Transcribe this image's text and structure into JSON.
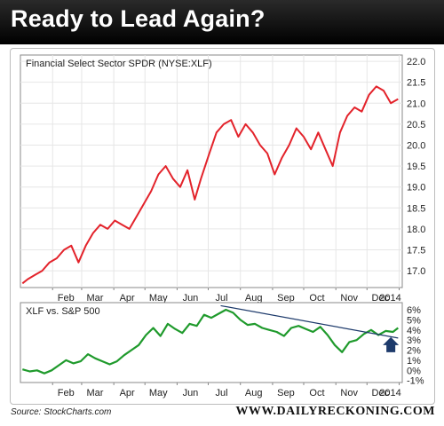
{
  "header": {
    "title": "Ready to Lead Again?"
  },
  "footer": {
    "source": "Source: StockCharts.com",
    "brand": "WWW.DAILYRECKONING.COM"
  },
  "colors": {
    "price_line": "#e3232b",
    "ratio_line": "#1f9a2c",
    "trend_line": "#1d3a6b",
    "arrow": "#1d3a6b"
  },
  "chart_data": [
    {
      "type": "line",
      "title": "Financial Select Sector SPDR (NYSE:XLF)",
      "x_ticks": [
        "Feb",
        "Mar",
        "Apr",
        "May",
        "Jun",
        "Jul",
        "Aug",
        "Sep",
        "Oct",
        "Nov",
        "Dec",
        "2014"
      ],
      "y_ticks": [
        "22.0",
        "21.5",
        "21.0",
        "20.5",
        "20.0",
        "19.5",
        "19.0",
        "18.5",
        "18.0",
        "17.5",
        "17.0"
      ],
      "ylim": [
        16.6,
        22.15
      ],
      "grid": true,
      "series": [
        {
          "x": [
            "Jan 3",
            "Jan 8",
            "Jan 15",
            "Jan 22",
            "Jan 29",
            "Feb 5",
            "Feb 12",
            "Feb 19",
            "Feb 26",
            "Mar 5",
            "Mar 12",
            "Mar 19",
            "Mar 26",
            "Apr 2",
            "Apr 9",
            "Apr 16",
            "Apr 23",
            "Apr 30",
            "May 7",
            "May 14",
            "May 21",
            "May 28",
            "Jun 4",
            "Jun 11",
            "Jun 18",
            "Jun 24",
            "Jul 2",
            "Jul 9",
            "Jul 16",
            "Jul 23",
            "Jul 30",
            "Aug 6",
            "Aug 13",
            "Aug 20",
            "Aug 27",
            "Sep 3",
            "Sep 10",
            "Sep 17",
            "Sep 24",
            "Oct 1",
            "Oct 8",
            "Oct 15",
            "Oct 22",
            "Oct 29",
            "Nov 5",
            "Nov 12",
            "Nov 19",
            "Nov 26",
            "Dec 3",
            "Dec 10",
            "Dec 17",
            "Dec 24",
            "Dec 31"
          ],
          "values": [
            16.7,
            16.8,
            16.9,
            17.0,
            17.2,
            17.3,
            17.5,
            17.6,
            17.2,
            17.6,
            17.9,
            18.1,
            18.0,
            18.2,
            18.1,
            18.0,
            18.3,
            18.6,
            18.9,
            19.3,
            19.5,
            19.2,
            19.0,
            19.4,
            18.7,
            19.2,
            19.8,
            20.3,
            20.5,
            20.6,
            20.2,
            20.5,
            20.3,
            20.0,
            19.8,
            19.3,
            19.7,
            20.0,
            20.4,
            20.2,
            19.9,
            20.3,
            19.9,
            19.5,
            20.3,
            20.7,
            20.9,
            20.8,
            21.2,
            21.4,
            21.3,
            21.0,
            21.1
          ]
        }
      ]
    },
    {
      "type": "line",
      "title": "XLF vs. S&P 500",
      "x_ticks": [
        "Feb",
        "Mar",
        "Apr",
        "May",
        "Jun",
        "Jul",
        "Aug",
        "Sep",
        "Oct",
        "Nov",
        "Dec",
        "2014"
      ],
      "y_ticks": [
        "6%",
        "5%",
        "4%",
        "3%",
        "2%",
        "1%",
        "0%",
        "-1%"
      ],
      "ylim": [
        -1.2,
        6.7
      ],
      "series": [
        {
          "x": [
            "Jan 3",
            "Jan 10",
            "Jan 17",
            "Jan 24",
            "Jan 31",
            "Feb 7",
            "Feb 14",
            "Feb 21",
            "Feb 28",
            "Mar 7",
            "Mar 14",
            "Mar 21",
            "Mar 28",
            "Apr 4",
            "Apr 11",
            "Apr 18",
            "Apr 25",
            "May 2",
            "May 9",
            "May 16",
            "May 23",
            "May 30",
            "Jun 6",
            "Jun 13",
            "Jun 20",
            "Jun 27",
            "Jul 4",
            "Jul 11",
            "Jul 18",
            "Jul 25",
            "Aug 1",
            "Aug 8",
            "Aug 15",
            "Aug 22",
            "Aug 29",
            "Sep 5",
            "Sep 12",
            "Sep 19",
            "Sep 26",
            "Oct 3",
            "Oct 10",
            "Oct 17",
            "Oct 24",
            "Oct 31",
            "Nov 7",
            "Nov 14",
            "Nov 21",
            "Nov 28",
            "Dec 5",
            "Dec 12",
            "Dec 19",
            "Dec 26",
            "Dec 31"
          ],
          "values": [
            0.1,
            -0.1,
            0.0,
            -0.3,
            0.0,
            0.5,
            1.0,
            0.7,
            0.9,
            1.6,
            1.2,
            0.9,
            0.6,
            0.9,
            1.5,
            2.0,
            2.5,
            3.5,
            4.2,
            3.4,
            4.6,
            4.1,
            3.7,
            4.6,
            4.4,
            5.5,
            5.2,
            5.6,
            6.0,
            5.7,
            5.0,
            4.5,
            4.6,
            4.2,
            4.0,
            3.8,
            3.4,
            4.2,
            4.4,
            4.1,
            3.8,
            4.3,
            3.5,
            2.5,
            1.8,
            2.8,
            3.0,
            3.6,
            4.0,
            3.5,
            3.9,
            3.8,
            4.2
          ]
        }
      ],
      "annotations": [
        {
          "type": "trendline",
          "from": {
            "x": "Jul 13",
            "y": 6.4
          },
          "to": {
            "x": "Dec 31",
            "y": 3.2
          }
        },
        {
          "type": "arrow",
          "direction": "up",
          "x": "Dec 24",
          "y": 1.8
        }
      ]
    }
  ]
}
